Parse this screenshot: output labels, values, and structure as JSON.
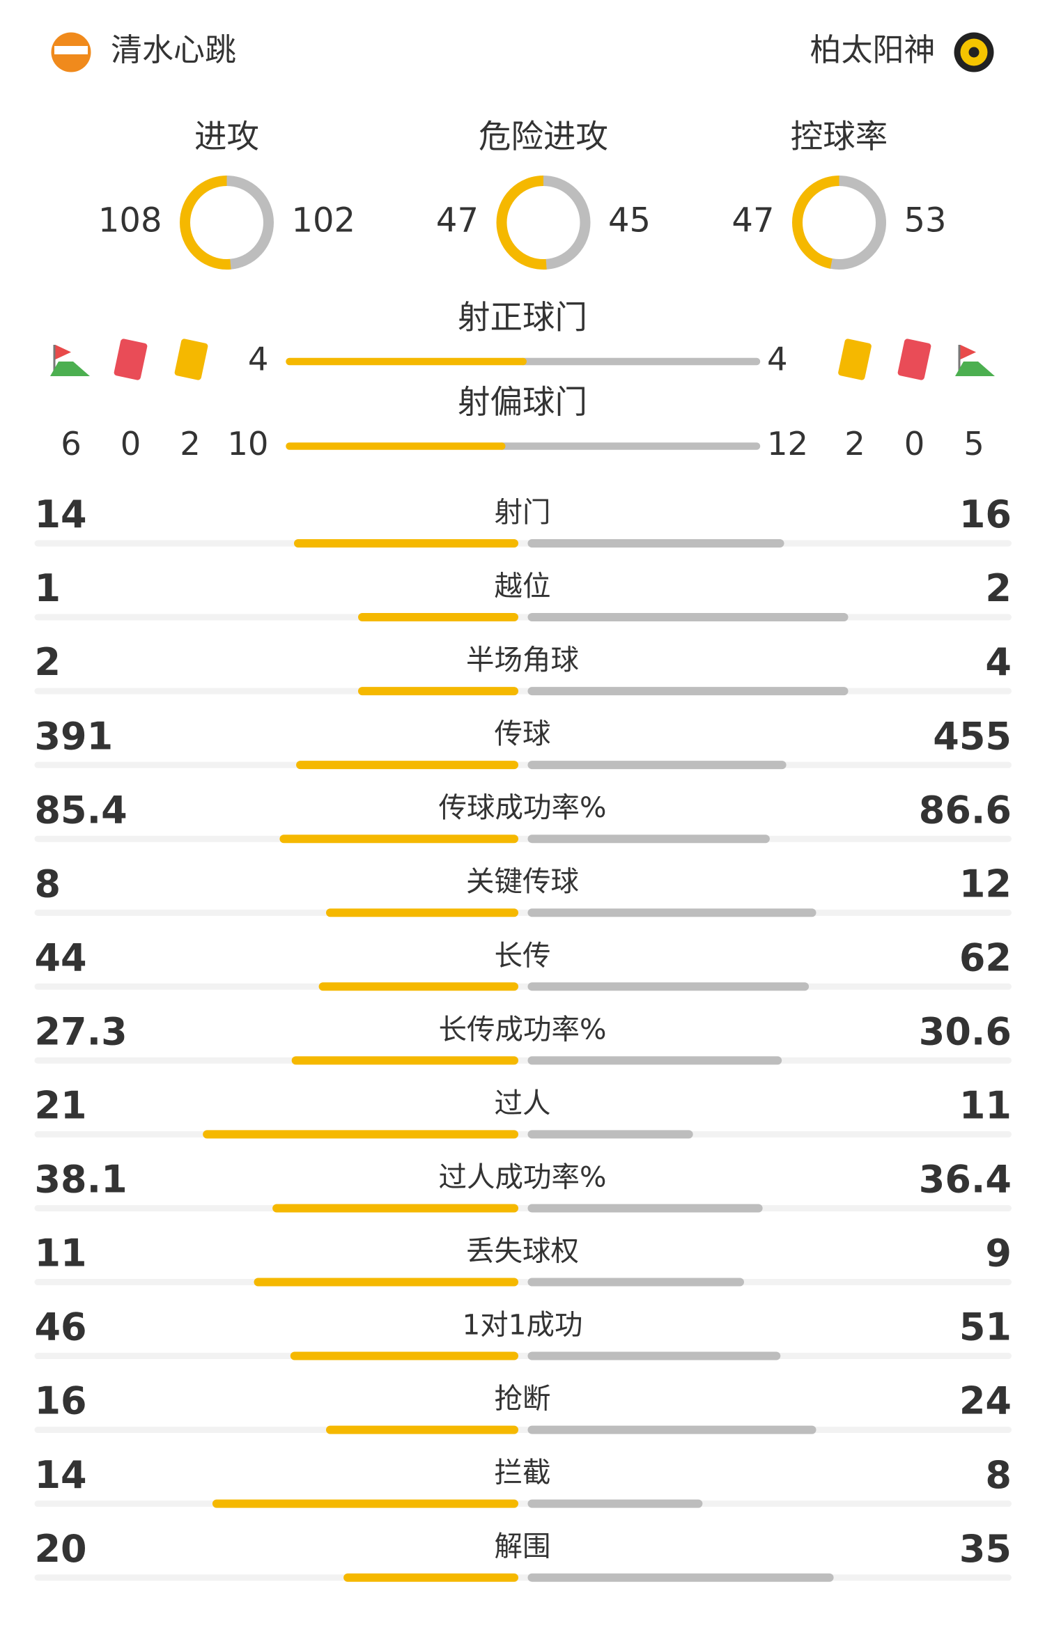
{
  "home": {
    "name": "清水心跳"
  },
  "away": {
    "name": "柏太阳神"
  },
  "rings": [
    {
      "label": "进攻",
      "home": 108,
      "away": 102
    },
    {
      "label": "危险进攻",
      "home": 47,
      "away": 45
    },
    {
      "label": "控球率",
      "home": 47,
      "away": 53
    }
  ],
  "bars": [
    {
      "label": "射正球门",
      "home": 4,
      "away": 4
    },
    {
      "label": "射偏球门",
      "home": 10,
      "away": 12
    }
  ],
  "cards": {
    "home": {
      "corners": 6,
      "red": 0,
      "yellow": 2
    },
    "away": {
      "yellow": 2,
      "red": 0,
      "corners": 5
    }
  },
  "stats": [
    {
      "label": "射门",
      "home": 14,
      "away": 16
    },
    {
      "label": "越位",
      "home": 1,
      "away": 2
    },
    {
      "label": "半场角球",
      "home": 2,
      "away": 4
    },
    {
      "label": "传球",
      "home": 391,
      "away": 455
    },
    {
      "label": "传球成功率%",
      "home": 85.4,
      "away": 86.6
    },
    {
      "label": "关键传球",
      "home": 8,
      "away": 12
    },
    {
      "label": "长传",
      "home": 44,
      "away": 62
    },
    {
      "label": "长传成功率%",
      "home": 27.3,
      "away": 30.6
    },
    {
      "label": "过人",
      "home": 21,
      "away": 11
    },
    {
      "label": "过人成功率%",
      "home": 38.1,
      "away": 36.4
    },
    {
      "label": "丢失球权",
      "home": 11,
      "away": 9
    },
    {
      "label": "1对1成功",
      "home": 46,
      "away": 51
    },
    {
      "label": "抢断",
      "home": 16,
      "away": 24
    },
    {
      "label": "拦截",
      "home": 14,
      "away": 8
    },
    {
      "label": "解围",
      "home": 20,
      "away": 35
    }
  ]
}
